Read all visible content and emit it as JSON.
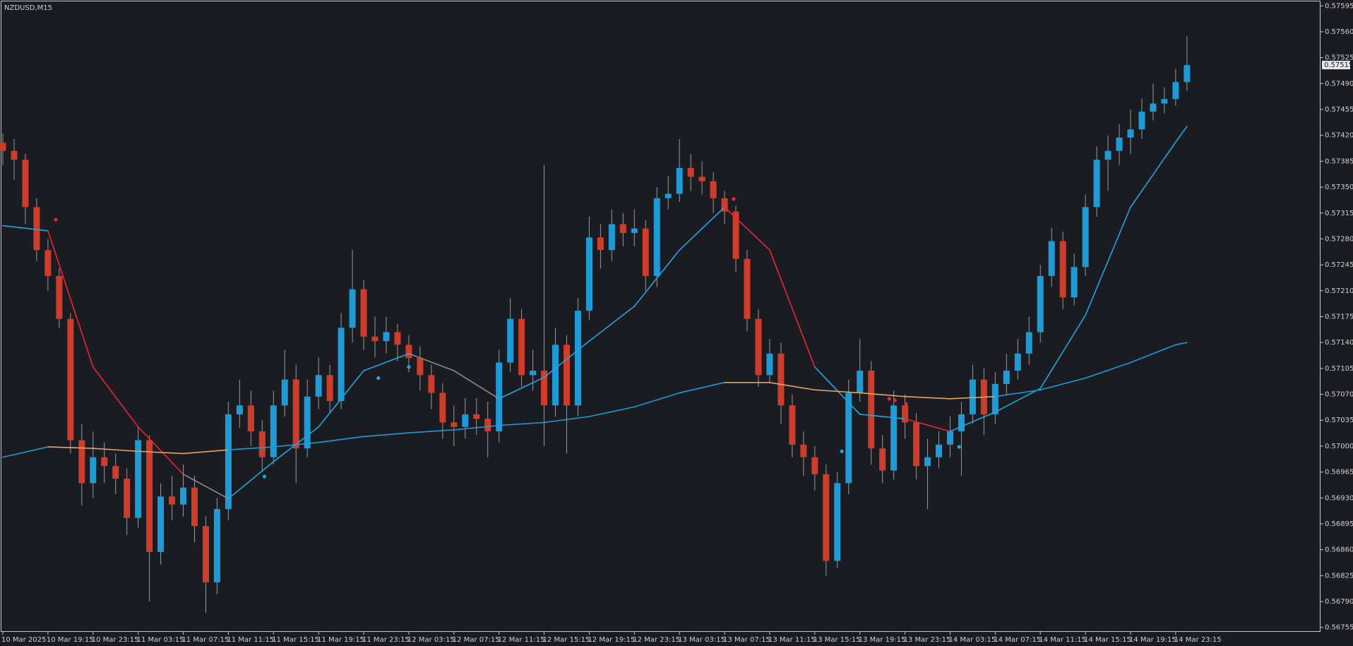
{
  "chart_data": {
    "type": "candlestick",
    "title": "NZDUSD,M15",
    "categories": [
      "10 Mar 2025",
      null,
      null,
      null,
      "10 Mar 19:15",
      null,
      null,
      null,
      "10 Mar 23:15",
      null,
      null,
      null,
      "11 Mar 03:15",
      null,
      null,
      null,
      "11 Mar 07:15",
      null,
      null,
      null,
      "11 Mar 11:15",
      null,
      null,
      null,
      "11 Mar 15:15",
      null,
      null,
      null,
      "11 Mar 19:15",
      null,
      null,
      null,
      "11 Mar 23:15",
      null,
      null,
      null,
      "12 Mar 03:15",
      null,
      null,
      null,
      "12 Mar 07:15",
      null,
      null,
      null,
      "12 Mar 11:15",
      null,
      null,
      null,
      "12 Mar 15:15",
      null,
      null,
      null,
      "12 Mar 19:15",
      null,
      null,
      null,
      "12 Mar 23:15",
      null,
      null,
      null,
      "13 Mar 03:15",
      null,
      null,
      null,
      "13 Mar 07:15",
      null,
      null,
      null,
      "13 Mar 11:15",
      null,
      null,
      null,
      "13 Mar 15:15",
      null,
      null,
      null,
      "13 Mar 19:15",
      null,
      null,
      null,
      "13 Mar 23:15",
      null,
      null,
      null,
      "14 Mar 03:15",
      null,
      null,
      null,
      "14 Mar 07:15",
      null,
      null,
      null,
      "14 Mar 11:15",
      null,
      null,
      null,
      "14 Mar 15:15",
      null,
      null,
      null,
      "14 Mar 19:15",
      null,
      null,
      null,
      "14 Mar 23:15",
      null
    ],
    "open": [
      0.5741,
      0.57399,
      0.57387,
      0.57323,
      0.57265,
      0.5723,
      0.57172,
      0.57008,
      0.5695,
      0.56985,
      0.56973,
      0.56956,
      0.56903,
      0.57008,
      0.56857,
      0.56932,
      0.56921,
      0.56944,
      0.56892,
      0.56816,
      0.56915,
      0.57043,
      0.57055,
      0.5702,
      0.56985,
      0.57055,
      0.5709,
      0.56997,
      0.57067,
      0.57096,
      0.57061,
      0.5716,
      0.57212,
      0.57148,
      0.57142,
      0.57154,
      0.57137,
      0.57119,
      0.57096,
      0.57072,
      0.57032,
      0.57026,
      0.57043,
      0.57037,
      0.5702,
      0.57113,
      0.57172,
      0.57096,
      0.57102,
      0.57055,
      0.57137,
      0.57055,
      0.57183,
      0.57282,
      0.57265,
      0.573,
      0.57288,
      0.57294,
      0.5723,
      0.57335,
      0.57341,
      0.57376,
      0.57364,
      0.57358,
      0.57335,
      0.57317,
      0.57253,
      0.57172,
      0.57096,
      0.57125,
      0.57055,
      0.57002,
      0.56985,
      0.56962,
      0.56845,
      0.5695,
      0.57072,
      0.57102,
      0.56997,
      0.56967,
      0.57055,
      0.57032,
      0.56973,
      0.56985,
      0.57002,
      0.5702,
      0.57043,
      0.5709,
      0.57043,
      0.57084,
      0.57102,
      0.57125,
      0.57154,
      0.5723,
      0.57277,
      0.57201,
      0.57242,
      0.57323,
      0.57387,
      0.57399,
      0.57417,
      0.57428,
      0.57452,
      0.57463,
      0.57469,
      0.57492
    ],
    "high": [
      0.57422,
      0.57415,
      0.57395,
      0.57335,
      0.5728,
      0.5724,
      0.5718,
      0.5703,
      0.5702,
      0.57005,
      0.5699,
      0.5697,
      0.57025,
      0.57015,
      0.5695,
      0.5696,
      0.56975,
      0.5696,
      0.56905,
      0.5693,
      0.5706,
      0.5709,
      0.57075,
      0.57035,
      0.57075,
      0.5713,
      0.5711,
      0.5709,
      0.5712,
      0.5711,
      0.5718,
      0.57265,
      0.57225,
      0.57175,
      0.57175,
      0.57165,
      0.5715,
      0.57135,
      0.5711,
      0.57085,
      0.57055,
      0.57065,
      0.57065,
      0.5706,
      0.5713,
      0.572,
      0.57185,
      0.5713,
      0.5738,
      0.5716,
      0.5715,
      0.572,
      0.5731,
      0.573,
      0.5732,
      0.57315,
      0.5732,
      0.57305,
      0.5735,
      0.57365,
      0.57415,
      0.57395,
      0.57385,
      0.5737,
      0.57345,
      0.57325,
      0.57265,
      0.57185,
      0.57145,
      0.5714,
      0.5707,
      0.5702,
      0.57,
      0.56975,
      0.56965,
      0.5709,
      0.57145,
      0.57115,
      0.57015,
      0.57075,
      0.5707,
      0.57045,
      0.5701,
      0.5702,
      0.5704,
      0.5706,
      0.5711,
      0.57105,
      0.571,
      0.57125,
      0.57145,
      0.57175,
      0.57245,
      0.57295,
      0.5729,
      0.5726,
      0.5734,
      0.57405,
      0.5742,
      0.57435,
      0.57455,
      0.5747,
      0.5749,
      0.57485,
      0.5751,
      0.57554
    ],
    "low": [
      0.5738,
      0.5736,
      0.573,
      0.5725,
      0.5721,
      0.5716,
      0.5699,
      0.5692,
      0.5693,
      0.5695,
      0.56935,
      0.5688,
      0.5689,
      0.5679,
      0.5684,
      0.569,
      0.56905,
      0.5687,
      0.56775,
      0.568,
      0.569,
      0.57025,
      0.57,
      0.56965,
      0.56975,
      0.5704,
      0.5695,
      0.56985,
      0.5705,
      0.57045,
      0.5705,
      0.5714,
      0.5713,
      0.5712,
      0.57125,
      0.57115,
      0.571,
      0.57075,
      0.5705,
      0.5701,
      0.57,
      0.5701,
      0.57015,
      0.56985,
      0.57005,
      0.571,
      0.5708,
      0.57075,
      0.57,
      0.5704,
      0.5699,
      0.5704,
      0.5717,
      0.5724,
      0.5725,
      0.5727,
      0.5727,
      0.5721,
      0.57215,
      0.5732,
      0.5733,
      0.57345,
      0.5734,
      0.57315,
      0.573,
      0.57235,
      0.57155,
      0.5708,
      0.57085,
      0.5703,
      0.56985,
      0.5696,
      0.5694,
      0.56825,
      0.56835,
      0.56935,
      0.5706,
      0.56975,
      0.5695,
      0.56955,
      0.5701,
      0.56955,
      0.56915,
      0.5697,
      0.56985,
      0.5696,
      0.5703,
      0.57015,
      0.5703,
      0.5707,
      0.5709,
      0.5711,
      0.5714,
      0.57215,
      0.57185,
      0.5719,
      0.5723,
      0.5731,
      0.57345,
      0.5738,
      0.57395,
      0.57415,
      0.5744,
      0.5745,
      0.5746,
      0.5748
    ],
    "close": [
      0.57399,
      0.57387,
      0.57323,
      0.57265,
      0.5723,
      0.57172,
      0.57008,
      0.5695,
      0.56985,
      0.56973,
      0.56956,
      0.56903,
      0.57008,
      0.56857,
      0.56932,
      0.56921,
      0.56944,
      0.56892,
      0.56816,
      0.56915,
      0.57043,
      0.57055,
      0.5702,
      0.56985,
      0.57055,
      0.5709,
      0.56997,
      0.57067,
      0.57096,
      0.57061,
      0.5716,
      0.57212,
      0.57148,
      0.57142,
      0.57154,
      0.57137,
      0.57119,
      0.57096,
      0.57072,
      0.57032,
      0.57026,
      0.57043,
      0.57037,
      0.5702,
      0.57113,
      0.57172,
      0.57096,
      0.57102,
      0.57055,
      0.57137,
      0.57055,
      0.57183,
      0.57282,
      0.57265,
      0.573,
      0.57288,
      0.57294,
      0.5723,
      0.57335,
      0.57341,
      0.57376,
      0.57364,
      0.57358,
      0.57335,
      0.57317,
      0.57253,
      0.57172,
      0.57096,
      0.57125,
      0.57055,
      0.57002,
      0.56985,
      0.56962,
      0.56845,
      0.5695,
      0.57072,
      0.57102,
      0.56997,
      0.56967,
      0.57055,
      0.57032,
      0.56973,
      0.56985,
      0.57002,
      0.5702,
      0.57043,
      0.5709,
      0.57043,
      0.57084,
      0.57102,
      0.57125,
      0.57154,
      0.5723,
      0.57277,
      0.57201,
      0.57242,
      0.57323,
      0.57387,
      0.57399,
      0.57417,
      0.57428,
      0.57452,
      0.57463,
      0.57469,
      0.57492,
      0.57515
    ],
    "up_color": "#1e9bd7",
    "down_color": "#d03c2a",
    "wick_color": "#9a9a9a",
    "ylim": [
      0.56749,
      0.57601
    ],
    "yticks": [
      0.57595,
      {
        "value": 0.5756,
        "label": "0.57560"
      },
      0.57525,
      {
        "value": 0.5749,
        "label": "0.57490"
      },
      0.57455,
      {
        "value": 0.5742,
        "label": "0.57420"
      },
      0.57385,
      {
        "value": 0.5735,
        "label": "0.57350"
      },
      0.57315,
      {
        "value": 0.5728,
        "label": "0.57280"
      },
      0.57245,
      {
        "value": 0.5721,
        "label": "0.57210"
      },
      0.57175,
      {
        "value": 0.5714,
        "label": "0.57140"
      },
      0.57105,
      {
        "value": 0.5707,
        "label": "0.57070"
      },
      0.57035,
      {
        "value": 0.57,
        "label": "0.57000"
      },
      0.56965,
      {
        "value": 0.5693,
        "label": "0.56930"
      },
      0.56895,
      {
        "value": 0.5686,
        "label": "0.56860"
      },
      0.56825,
      {
        "value": 0.5679,
        "label": "0.56790"
      },
      0.56755
    ],
    "grid": false,
    "current_price": 0.57515,
    "lines": [
      {
        "x": [
          0,
          4,
          8,
          12,
          16,
          20,
          24,
          28,
          32,
          36,
          40,
          44,
          48,
          52,
          56,
          60,
          64,
          68,
          72,
          76,
          80,
          84,
          88,
          92,
          96,
          100,
          104,
          105
        ],
        "values": [
          0.57298,
          0.57291,
          0.57107,
          0.57026,
          0.56962,
          0.56929,
          0.56979,
          0.57026,
          0.57102,
          0.57125,
          0.57102,
          0.57064,
          0.57093,
          0.57142,
          0.57189,
          0.57265,
          0.57323,
          0.57265,
          0.57107,
          0.57043,
          0.57037,
          0.5702,
          0.57046,
          0.57078,
          0.57177,
          0.57323,
          0.57411,
          0.57432
        ],
        "point_colors": [
          "#1ea7e1",
          "#e8253d",
          "#e8253d",
          "#e8253d",
          "#8c8c8c",
          "#1ea7e1",
          "#1ea7e1",
          "#1ea7e1",
          "#1ea7e1",
          "#8c8c8c",
          "#8c8c8c",
          "#1ea7e1",
          "#1ea7e1",
          "#1ea7e1",
          "#1ea7e1",
          "#1ea7e1",
          "#e8253d",
          "#e8253d",
          "#1ea7e1",
          "#1ea7e1",
          "#e8253d",
          "#1ea7e1",
          "#1ea7e1",
          "#1ea7e1",
          "#1ea7e1",
          "#1ea7e1",
          "#1ea7e1",
          "#1ea7e1"
        ]
      },
      {
        "x": [
          0,
          4,
          8,
          12,
          16,
          20,
          24,
          28,
          32,
          36,
          40,
          44,
          48,
          52,
          56,
          60,
          64,
          68,
          72,
          76,
          80,
          84,
          88,
          92,
          96,
          100,
          104,
          105
        ],
        "values": [
          0.56985,
          0.56999,
          0.56997,
          0.56993,
          0.5699,
          0.56995,
          0.56999,
          0.57005,
          0.57013,
          0.57018,
          0.57022,
          0.57028,
          0.57032,
          0.5704,
          0.57053,
          0.57072,
          0.57086,
          0.57086,
          0.57076,
          0.57072,
          0.57067,
          0.57064,
          0.57067,
          0.57076,
          0.57092,
          0.57113,
          0.57137,
          0.5714
        ],
        "point_colors": [
          "#1e9bd7",
          "#e0a468",
          "#e0a468",
          "#e0a468",
          "#e0a468",
          "#1e9bd7",
          "#1e9bd7",
          "#1e9bd7",
          "#1e9bd7",
          "#1e9bd7",
          "#1e9bd7",
          "#1e9bd7",
          "#1e9bd7",
          "#1e9bd7",
          "#1e9bd7",
          "#1e9bd7",
          "#e0a468",
          "#e0a468",
          "#e0a468",
          "#e0a468",
          "#e0a468",
          "#e0a468",
          "#1e9bd7",
          "#1e9bd7",
          "#1e9bd7",
          "#1e9bd7",
          "#1e9bd7",
          "#1e9bd7"
        ]
      }
    ],
    "markers": [
      {
        "color": "#e8253d",
        "x": [
          4.7,
          64.8,
          78.6,
          79.1,
          80.1
        ],
        "values": [
          0.57306,
          0.57334,
          0.57064,
          0.57062,
          0.57057
        ]
      },
      {
        "color": "#1ea7e1",
        "x": [
          23.2,
          33.3,
          36.0,
          74.4,
          84.8
        ],
        "values": [
          0.56959,
          0.57092,
          0.57107,
          0.56993,
          0.56999
        ]
      }
    ]
  }
}
